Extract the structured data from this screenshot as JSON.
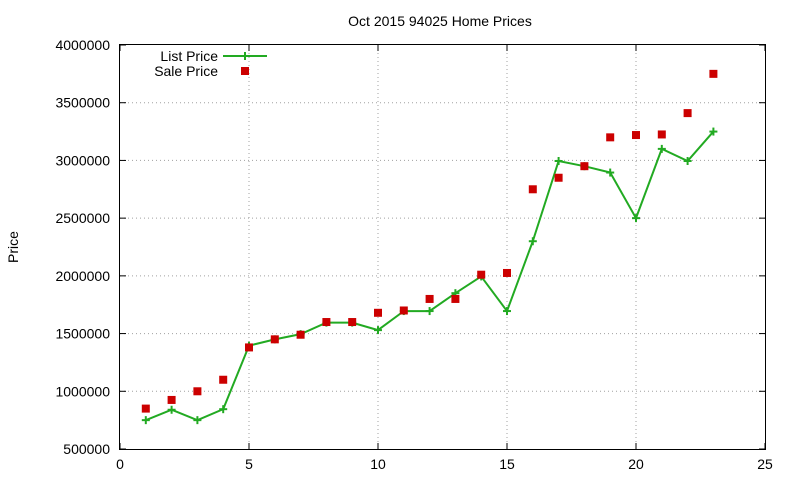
{
  "chart_data": {
    "type": "line",
    "title": "Oct 2015 94025 Home Prices",
    "xlabel": "",
    "ylabel": "Price",
    "xlim": [
      0,
      25
    ],
    "ylim": [
      500000,
      4000000
    ],
    "x_ticks": [
      0,
      5,
      10,
      15,
      20,
      25
    ],
    "y_ticks": [
      500000,
      1000000,
      1500000,
      2000000,
      2500000,
      3000000,
      3500000,
      4000000
    ],
    "grid": true,
    "legend_position": "top-left",
    "series": [
      {
        "name": "List Price",
        "style": "line+cross",
        "color": "#22aa22",
        "x": [
          1,
          2,
          3,
          4,
          5,
          6,
          7,
          8,
          9,
          10,
          11,
          12,
          13,
          14,
          15,
          16,
          17,
          18,
          19,
          20,
          21,
          22,
          23
        ],
        "y": [
          750000,
          840000,
          750000,
          845000,
          1395000,
          1450000,
          1495000,
          1595000,
          1595000,
          1530000,
          1695000,
          1695000,
          1850000,
          1995000,
          1695000,
          2300000,
          2995000,
          2950000,
          2895000,
          2500000,
          3100000,
          2995000,
          3250000
        ]
      },
      {
        "name": "Sale Price",
        "style": "square",
        "color": "#cc0000",
        "x": [
          1,
          2,
          3,
          4,
          5,
          6,
          7,
          8,
          9,
          10,
          11,
          12,
          13,
          14,
          15,
          16,
          17,
          18,
          19,
          20,
          21,
          22,
          23
        ],
        "y": [
          850000,
          925000,
          1000000,
          1100000,
          1380000,
          1450000,
          1490000,
          1600000,
          1600000,
          1680000,
          1700000,
          1800000,
          1800000,
          2010000,
          2025000,
          2750000,
          2850000,
          2950000,
          3200000,
          3220000,
          3225000,
          3410000,
          3750000
        ]
      }
    ]
  }
}
